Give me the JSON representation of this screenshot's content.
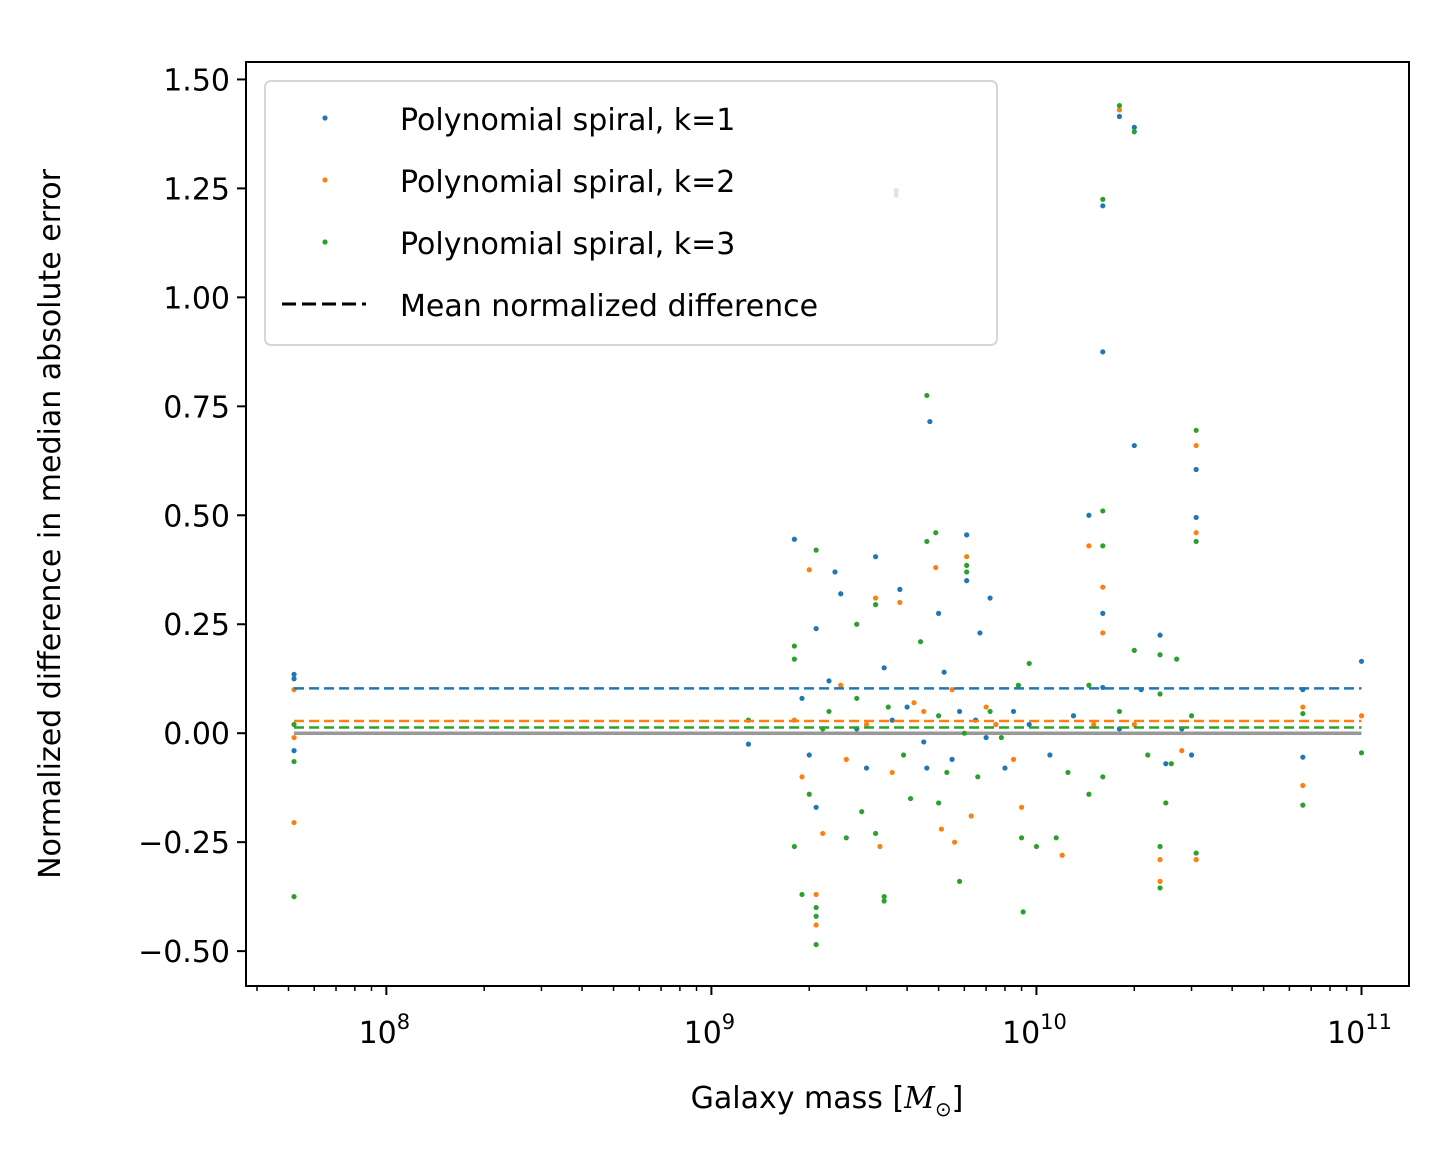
{
  "chart_data": {
    "type": "scatter",
    "xscale": "log",
    "xlim": [
      37000000,
      140000000000
    ],
    "ylim": [
      -0.58,
      1.54
    ],
    "xlabel_main": "Galaxy mass [",
    "xlabel_symbol": "M",
    "xlabel_sub": "⊙",
    "xlabel_end": "]",
    "ylabel": "Normalized difference in median absolute error",
    "x_ticks": [
      {
        "value": 100000000,
        "base": "10",
        "exp": "8"
      },
      {
        "value": 1000000000,
        "base": "10",
        "exp": "9"
      },
      {
        "value": 10000000000,
        "base": "10",
        "exp": "10"
      },
      {
        "value": 100000000000,
        "base": "10",
        "exp": "11"
      }
    ],
    "y_ticks": [
      {
        "value": -0.5,
        "label": "−0.50"
      },
      {
        "value": -0.25,
        "label": "−0.25"
      },
      {
        "value": 0.0,
        "label": "0.00"
      },
      {
        "value": 0.25,
        "label": "0.25"
      },
      {
        "value": 0.5,
        "label": "0.50"
      },
      {
        "value": 0.75,
        "label": "0.75"
      },
      {
        "value": 1.0,
        "label": "1.00"
      },
      {
        "value": 1.25,
        "label": "1.25"
      },
      {
        "value": 1.5,
        "label": "1.50"
      }
    ],
    "zero_line": {
      "y": 0,
      "color": "#999999"
    },
    "legend_position": "upper-left",
    "legend_dashed_label": "Mean normalized difference",
    "series": [
      {
        "name": "Polynomial spiral, k=1",
        "color": "#1f77b4",
        "mean": 0.103,
        "points": [
          [
            52000000.0,
            0.135
          ],
          [
            52000000.0,
            0.125
          ],
          [
            52000000.0,
            -0.04
          ],
          [
            1800000000.0,
            0.445
          ],
          [
            2100000000.0,
            0.24
          ],
          [
            2400000000.0,
            0.37
          ],
          [
            2500000000.0,
            0.32
          ],
          [
            3200000000.0,
            0.405
          ],
          [
            3800000000.0,
            0.33
          ],
          [
            4700000000.0,
            0.715
          ],
          [
            5000000000.0,
            0.275
          ],
          [
            6100000000.0,
            0.455
          ],
          [
            6100000000.0,
            0.35
          ],
          [
            6700000000.0,
            0.23
          ],
          [
            7200000000.0,
            0.31
          ],
          [
            14500000000.0,
            0.5
          ],
          [
            16000000000.0,
            0.875
          ],
          [
            16000000000.0,
            1.21
          ],
          [
            16000000000.0,
            0.275
          ],
          [
            18000000000.0,
            1.415
          ],
          [
            20000000000.0,
            1.39
          ],
          [
            20000000000.0,
            0.66
          ],
          [
            31000000000.0,
            0.605
          ],
          [
            31000000000.0,
            0.495
          ],
          [
            24000000000.0,
            0.225
          ],
          [
            100000000000.0,
            0.165
          ],
          [
            66000000000.0,
            0.1
          ],
          [
            66000000000.0,
            -0.055
          ],
          [
            1300000000.0,
            -0.025
          ],
          [
            1900000000.0,
            0.08
          ],
          [
            2000000000.0,
            -0.05
          ],
          [
            2100000000.0,
            -0.17
          ],
          [
            2300000000.0,
            0.12
          ],
          [
            2800000000.0,
            0.01
          ],
          [
            3000000000.0,
            -0.08
          ],
          [
            3400000000.0,
            0.15
          ],
          [
            3600000000.0,
            0.03
          ],
          [
            4000000000.0,
            0.06
          ],
          [
            4500000000.0,
            -0.02
          ],
          [
            4600000000.0,
            -0.08
          ],
          [
            5200000000.0,
            0.14
          ],
          [
            5500000000.0,
            -0.06
          ],
          [
            5800000000.0,
            0.05
          ],
          [
            6500000000.0,
            0.03
          ],
          [
            7000000000.0,
            -0.01
          ],
          [
            8000000000.0,
            -0.08
          ],
          [
            8500000000.0,
            0.05
          ],
          [
            9500000000.0,
            0.02
          ],
          [
            11000000000.0,
            -0.05
          ],
          [
            13000000000.0,
            0.04
          ],
          [
            16000000000.0,
            0.105
          ],
          [
            18000000000.0,
            0.01
          ],
          [
            21000000000.0,
            0.1
          ],
          [
            25000000000.0,
            -0.07
          ],
          [
            28000000000.0,
            0.01
          ],
          [
            30000000000.0,
            -0.05
          ]
        ]
      },
      {
        "name": "Polynomial spiral, k=2",
        "color": "#ff7f0e",
        "mean": 0.028,
        "points": [
          [
            52000000.0,
            0.1
          ],
          [
            52000000.0,
            -0.01
          ],
          [
            52000000.0,
            -0.205
          ],
          [
            2000000000.0,
            0.375
          ],
          [
            2100000000.0,
            -0.37
          ],
          [
            2100000000.0,
            -0.44
          ],
          [
            3200000000.0,
            0.31
          ],
          [
            3800000000.0,
            0.3
          ],
          [
            4900000000.0,
            0.38
          ],
          [
            6100000000.0,
            0.405
          ],
          [
            14500000000.0,
            0.43
          ],
          [
            16000000000.0,
            0.335
          ],
          [
            16000000000.0,
            0.23
          ],
          [
            18000000000.0,
            1.43
          ],
          [
            31000000000.0,
            0.66
          ],
          [
            31000000000.0,
            0.46
          ],
          [
            24000000000.0,
            -0.34
          ],
          [
            24000000000.0,
            -0.29
          ],
          [
            31000000000.0,
            -0.29
          ],
          [
            66000000000.0,
            -0.12
          ],
          [
            66000000000.0,
            0.06
          ],
          [
            100000000000.0,
            0.04
          ],
          [
            1900000000.0,
            -0.1
          ],
          [
            2200000000.0,
            -0.23
          ],
          [
            2600000000.0,
            -0.06
          ],
          [
            3300000000.0,
            -0.26
          ],
          [
            3600000000.0,
            -0.09
          ],
          [
            4200000000.0,
            0.07
          ],
          [
            5100000000.0,
            -0.22
          ],
          [
            5600000000.0,
            -0.25
          ],
          [
            6300000000.0,
            -0.19
          ],
          [
            7500000000.0,
            0.02
          ],
          [
            9000000000.0,
            -0.17
          ],
          [
            12000000000.0,
            -0.28
          ],
          [
            15000000000.0,
            0.02
          ],
          [
            20000000000.0,
            0.02
          ],
          [
            28000000000.0,
            -0.04
          ],
          [
            1800000000.0,
            0.03
          ],
          [
            2500000000.0,
            0.11
          ],
          [
            3000000000.0,
            0.02
          ],
          [
            4500000000.0,
            0.05
          ],
          [
            5500000000.0,
            0.1
          ],
          [
            7000000000.0,
            0.06
          ],
          [
            8500000000.0,
            -0.06
          ]
        ]
      },
      {
        "name": "Polynomial spiral, k=3",
        "color": "#2ca02c",
        "mean": 0.013,
        "points": [
          [
            52000000.0,
            0.02
          ],
          [
            52000000.0,
            -0.065
          ],
          [
            52000000.0,
            -0.375
          ],
          [
            1800000000.0,
            0.2
          ],
          [
            1800000000.0,
            -0.26
          ],
          [
            1900000000.0,
            -0.37
          ],
          [
            2100000000.0,
            0.42
          ],
          [
            2100000000.0,
            -0.4
          ],
          [
            2100000000.0,
            -0.42
          ],
          [
            2100000000.0,
            -0.485
          ],
          [
            2800000000.0,
            0.25
          ],
          [
            3200000000.0,
            0.295
          ],
          [
            3400000000.0,
            -0.375
          ],
          [
            3400000000.0,
            -0.385
          ],
          [
            3700000000.0,
            1.245
          ],
          [
            3700000000.0,
            1.235
          ],
          [
            4600000000.0,
            0.775
          ],
          [
            4600000000.0,
            0.44
          ],
          [
            4900000000.0,
            0.46
          ],
          [
            6100000000.0,
            0.385
          ],
          [
            6100000000.0,
            0.37
          ],
          [
            9100000000.0,
            -0.41
          ],
          [
            9500000000.0,
            0.16
          ],
          [
            16000000000.0,
            0.51
          ],
          [
            16000000000.0,
            0.43
          ],
          [
            16000000000.0,
            1.225
          ],
          [
            18000000000.0,
            1.44
          ],
          [
            20000000000.0,
            1.38
          ],
          [
            20000000000.0,
            0.19
          ],
          [
            31000000000.0,
            0.695
          ],
          [
            31000000000.0,
            0.44
          ],
          [
            31000000000.0,
            -0.275
          ],
          [
            24000000000.0,
            -0.355
          ],
          [
            24000000000.0,
            -0.26
          ],
          [
            24000000000.0,
            0.18
          ],
          [
            27000000000.0,
            0.17
          ],
          [
            100000000000.0,
            -0.045
          ],
          [
            66000000000.0,
            -0.165
          ],
          [
            66000000000.0,
            0.045
          ],
          [
            1300000000.0,
            0.03
          ],
          [
            1800000000.0,
            0.17
          ],
          [
            2000000000.0,
            -0.14
          ],
          [
            2300000000.0,
            0.05
          ],
          [
            2600000000.0,
            -0.24
          ],
          [
            2900000000.0,
            -0.18
          ],
          [
            3200000000.0,
            -0.23
          ],
          [
            3500000000.0,
            0.06
          ],
          [
            4100000000.0,
            -0.15
          ],
          [
            4400000000.0,
            0.21
          ],
          [
            5000000000.0,
            -0.16
          ],
          [
            5300000000.0,
            -0.09
          ],
          [
            5800000000.0,
            -0.34
          ],
          [
            6600000000.0,
            -0.1
          ],
          [
            7800000000.0,
            -0.01
          ],
          [
            9000000000.0,
            -0.24
          ],
          [
            10000000000.0,
            -0.26
          ],
          [
            11500000000.0,
            -0.24
          ],
          [
            12500000000.0,
            -0.09
          ],
          [
            14500000000.0,
            0.11
          ],
          [
            14500000000.0,
            -0.14
          ],
          [
            16000000000.0,
            -0.1
          ],
          [
            18000000000.0,
            0.05
          ],
          [
            22000000000.0,
            -0.05
          ],
          [
            24000000000.0,
            0.09
          ],
          [
            25000000000.0,
            -0.16
          ],
          [
            26000000000.0,
            -0.07
          ],
          [
            30000000000.0,
            0.04
          ],
          [
            2200000000.0,
            0.01
          ],
          [
            2800000000.0,
            0.08
          ],
          [
            3900000000.0,
            -0.05
          ],
          [
            5000000000.0,
            0.04
          ],
          [
            6000000000.0,
            0.0
          ],
          [
            7200000000.0,
            0.05
          ],
          [
            8800000000.0,
            0.11
          ]
        ]
      }
    ]
  }
}
